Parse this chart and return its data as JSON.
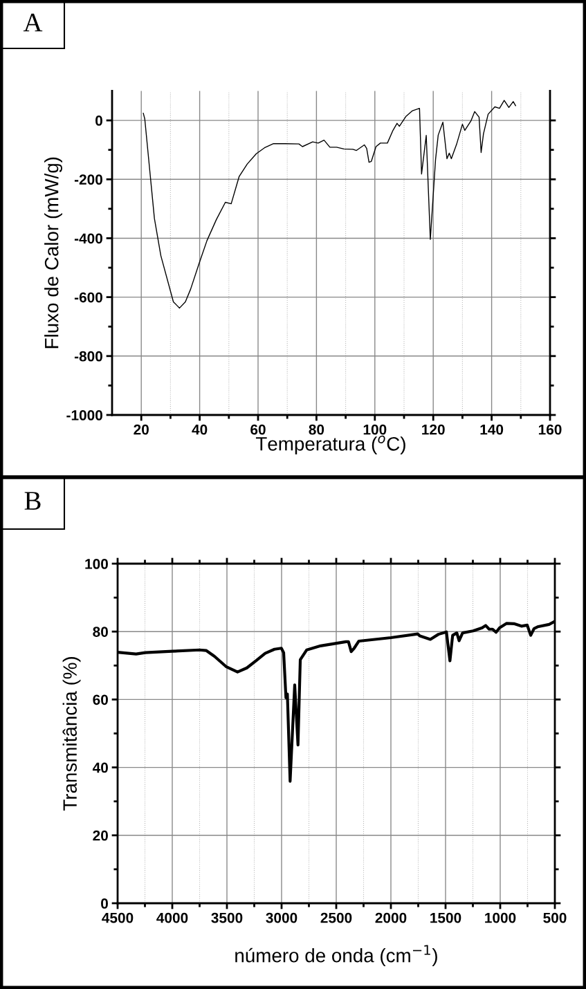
{
  "chart_data": [
    {
      "type": "line",
      "xlabel": "Temperatura ($^{o}$C)",
      "ylabel": "Fluxo de Calor (mW/g)",
      "annotations": [
        "A"
      ],
      "xlim": [
        10,
        160
      ],
      "ylim": [
        -1000,
        100
      ],
      "xticks": [
        20,
        40,
        60,
        80,
        100,
        120,
        140,
        160
      ],
      "yticks": [
        -1000,
        -800,
        -600,
        -400,
        -200,
        0
      ],
      "grid": true,
      "series": [
        {
          "color": "#000000",
          "x": [
            20.7,
            21.2,
            24.5,
            26.7,
            31.0,
            33.1,
            35.1,
            36.9,
            39.8,
            42.5,
            45.7,
            48.8,
            50.8,
            53.5,
            56.3,
            59.4,
            62.2,
            65.3,
            69.3,
            74.0,
            75.2,
            78.7,
            80.6,
            82.6,
            84.6,
            86.9,
            89.4,
            92.5,
            93.7,
            96.4,
            97.2,
            98.0,
            98.8,
            100.4,
            101.9,
            104.3,
            106.2,
            107.6,
            108.4,
            110.6,
            112.9,
            115.3,
            116.0,
            117.6,
            119.0,
            120.8,
            121.7,
            123.3,
            124.7,
            125.5,
            126.2,
            128.0,
            130.0,
            130.8,
            132.9,
            134.2,
            135.7,
            136.4,
            137.2,
            138.8,
            141.1,
            142.7,
            144.3,
            145.9,
            147.4,
            148.2
          ],
          "values": [
            24,
            5,
            -333,
            -459,
            -616,
            -637,
            -616,
            -573,
            -486,
            -408,
            -337,
            -278,
            -283,
            -191,
            -148,
            -113,
            -93,
            -79,
            -79,
            -80,
            -89,
            -73,
            -77,
            -67,
            -91,
            -91,
            -97,
            -98,
            -102,
            -83,
            -95,
            -142,
            -139,
            -89,
            -77,
            -77,
            -34,
            -10,
            -20,
            13,
            33,
            41,
            -182,
            -51,
            -404,
            -132,
            -50,
            -6,
            -130,
            -111,
            -130,
            -81,
            -13,
            -34,
            -2,
            30,
            11,
            -109,
            -46,
            21,
            46,
            41,
            68,
            44,
            64,
            50
          ]
        }
      ]
    },
    {
      "type": "line",
      "xlabel": "número de onda (cm$^{−1}$)",
      "ylabel": "Transmitância (%)",
      "annotations": [
        "B"
      ],
      "xlim": [
        4500,
        500
      ],
      "ylim": [
        0,
        100
      ],
      "xticks": [
        4500,
        4000,
        3500,
        3000,
        2500,
        2000,
        1500,
        1000,
        500
      ],
      "yticks": [
        0,
        20,
        40,
        60,
        80,
        100
      ],
      "grid": true,
      "series": [
        {
          "color": "#000000",
          "x": [
            4500,
            4331,
            4247,
            4000,
            3751,
            3688,
            3614,
            3508,
            3403,
            3318,
            3234,
            3150,
            3065,
            3002,
            2981,
            2960,
            2947,
            2922,
            2880,
            2850,
            2829,
            2770,
            2643,
            2411,
            2388,
            2363,
            2336,
            2293,
            2000,
            1755,
            1734,
            1639,
            1565,
            1492,
            1460,
            1435,
            1397,
            1376,
            1344,
            1249,
            1165,
            1133,
            1101,
            1070,
            1038,
            1006,
            943,
            869,
            806,
            753,
            721,
            690,
            658,
            553,
            500
          ],
          "values": [
            73.9,
            73.4,
            73.8,
            74.2,
            74.6,
            74.4,
            72.7,
            69.7,
            68.1,
            69.3,
            71.4,
            73.6,
            74.8,
            75.1,
            73.8,
            60.5,
            61.6,
            35.9,
            64.3,
            46.6,
            71.7,
            74.6,
            75.8,
            77.0,
            77.0,
            74.1,
            75.1,
            77.2,
            78.2,
            79.3,
            78.7,
            77.7,
            79.2,
            79.9,
            71.4,
            78.9,
            79.6,
            77.3,
            79.6,
            80.2,
            81.1,
            81.8,
            80.7,
            80.7,
            79.8,
            81.1,
            82.4,
            82.3,
            81.6,
            81.9,
            78.9,
            80.9,
            81.4,
            82.1,
            83.0
          ]
        }
      ]
    }
  ]
}
